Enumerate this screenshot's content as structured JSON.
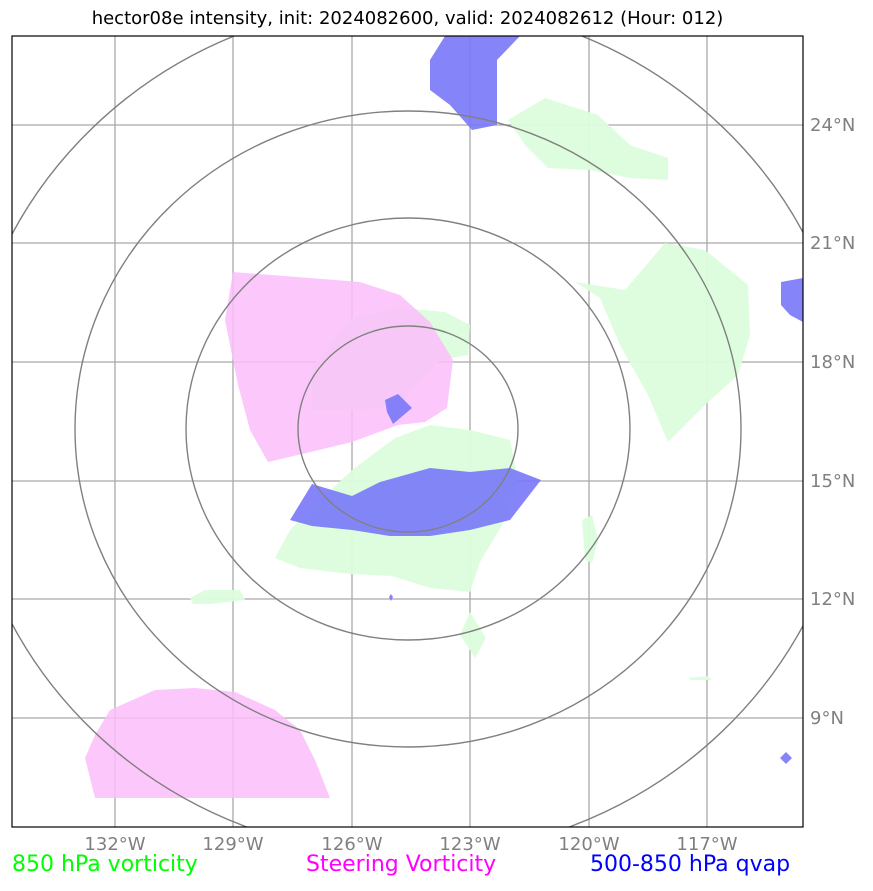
{
  "title": "hector08e intensity, init: 2024082600, valid: 2024082612 (Hour: 012)",
  "lon_labels": [
    "132°W",
    "129°W",
    "126°W",
    "123°W",
    "120°W",
    "117°W"
  ],
  "lat_labels": [
    "24°N",
    "21°N",
    "18°N",
    "15°N",
    "12°N",
    "9°N"
  ],
  "legend": {
    "vorticity_850": {
      "label": "850 hPa vorticity",
      "color": "#00ff00"
    },
    "steering": {
      "label": "Steering Vorticity",
      "color": "#ff00ff"
    },
    "qvap": {
      "label": "500-850 hPa qvap",
      "color": "#0000ff"
    }
  },
  "fill_colors": {
    "vorticity_850": "#dcfddc",
    "steering": "#fbbefb",
    "qvap": "#7878f8"
  }
}
